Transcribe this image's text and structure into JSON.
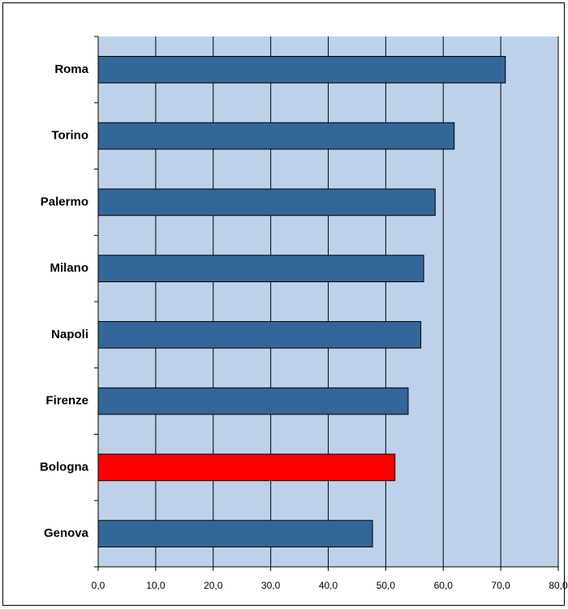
{
  "chart_data": {
    "type": "bar",
    "orientation": "horizontal",
    "categories": [
      "Roma",
      "Torino",
      "Palermo",
      "Milano",
      "Napoli",
      "Firenze",
      "Bologna",
      "Genova"
    ],
    "values": [
      70.8,
      61.9,
      58.6,
      56.6,
      56.1,
      53.9,
      51.6,
      47.7
    ],
    "colors": [
      "#336699",
      "#336699",
      "#336699",
      "#336699",
      "#336699",
      "#336699",
      "#ff0000",
      "#336699"
    ],
    "xlim": [
      0,
      80
    ],
    "xticks": [
      {
        "value": 0,
        "label": "0,0"
      },
      {
        "value": 10,
        "label": "10,0"
      },
      {
        "value": 20,
        "label": "20,0"
      },
      {
        "value": 30,
        "label": "30,0"
      },
      {
        "value": 40,
        "label": "40,0"
      },
      {
        "value": 50,
        "label": "50,0"
      },
      {
        "value": 60,
        "label": "60,0"
      },
      {
        "value": 70,
        "label": "70,0"
      },
      {
        "value": 80,
        "label": "80,0"
      }
    ],
    "grid": true,
    "plot_background": "#bdd2ea"
  }
}
